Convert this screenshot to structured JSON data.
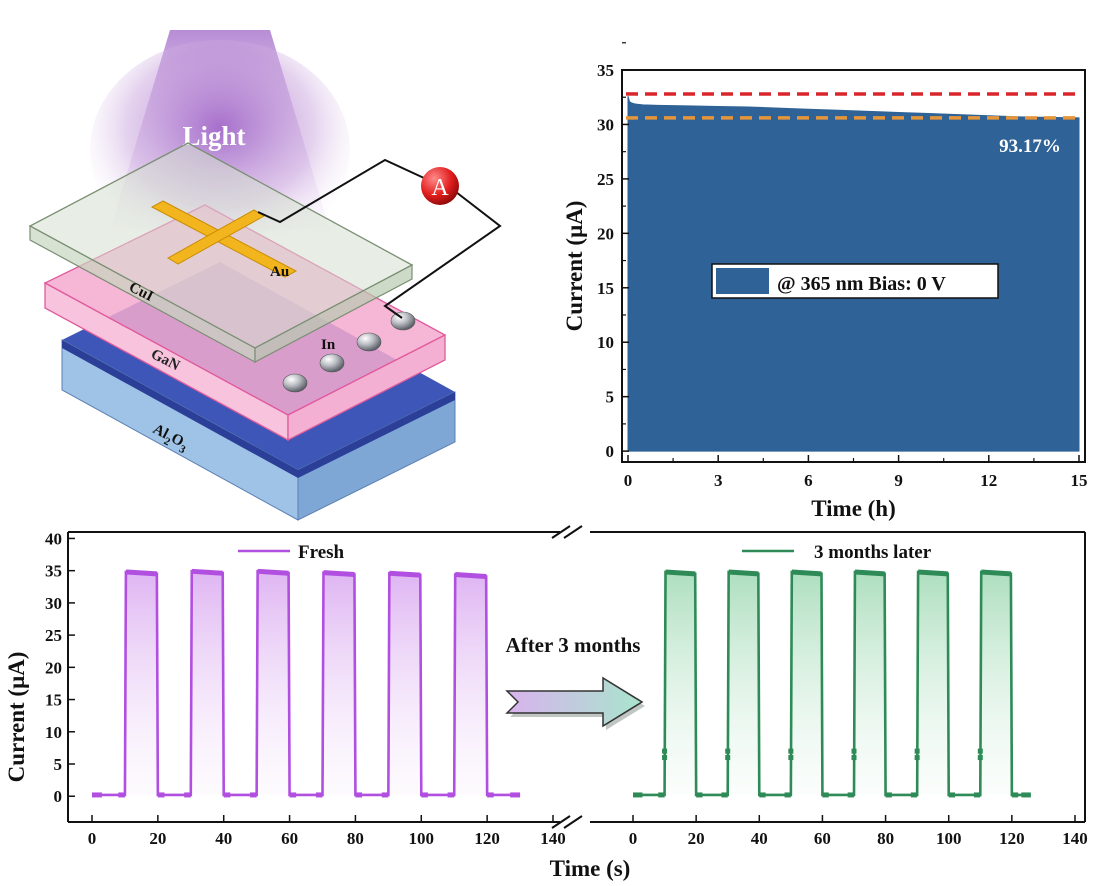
{
  "schematic": {
    "light_label": "Light",
    "ammeter_label": "A",
    "layers": [
      "CuI",
      "GaN",
      "Al2O3"
    ],
    "electrodes": [
      "Au",
      "In"
    ],
    "substrate_base": "Al",
    "substrate_sub1": "2",
    "substrate_mid": "O",
    "substrate_sub2": "3"
  },
  "chart_data": [
    {
      "type": "area",
      "xlabel": "Time (h)",
      "ylabel": "Current (μA)",
      "xlim": [
        0,
        15
      ],
      "ylim": [
        0,
        35
      ],
      "xticks": [
        0,
        3,
        6,
        9,
        12,
        15
      ],
      "yticks": [
        0,
        5,
        10,
        15,
        20,
        25,
        30,
        35
      ],
      "series": [
        {
          "color": "#2f6296",
          "x": [
            0,
            0.05,
            0.1,
            0.2,
            0.3,
            0.5,
            1,
            2,
            3,
            4,
            5,
            6,
            7,
            8,
            9,
            10,
            11,
            12,
            13,
            14,
            15
          ],
          "values": [
            32.6,
            32.1,
            32.0,
            31.9,
            31.85,
            31.8,
            31.75,
            31.7,
            31.65,
            31.6,
            31.5,
            31.4,
            31.3,
            31.2,
            31.1,
            31.0,
            30.9,
            30.8,
            30.7,
            30.65,
            30.6
          ]
        }
      ],
      "reference_lines": [
        {
          "y": 32.8,
          "color": "#d8262b",
          "style": "dashed"
        },
        {
          "y": 30.6,
          "color": "#e6963a",
          "style": "dashed"
        }
      ],
      "annotation": "93.17%",
      "legend": {
        "label": "@ 365 nm  Bias: 0 V",
        "position": "center"
      }
    },
    {
      "type": "line",
      "xlabel": "Time (s)",
      "ylabel": "Current (μA)",
      "ylim": [
        -4,
        41
      ],
      "yticks": [
        0,
        5,
        10,
        15,
        20,
        25,
        30,
        35,
        40
      ],
      "xticks_left": [
        0,
        20,
        40,
        60,
        80,
        100,
        120,
        140
      ],
      "xticks_right": [
        0,
        20,
        40,
        60,
        80,
        100,
        120,
        140
      ],
      "arrow_label": "After 3 months",
      "series": [
        {
          "name": "Fresh",
          "color": "#b14fe0",
          "fill": "#d9a8f0",
          "period": 20,
          "on_start": 10,
          "on_end": 20,
          "cycles": 6,
          "x_end": 130,
          "on_values": [
            34.8,
            34.9,
            34.9,
            34.7,
            34.6,
            34.4
          ],
          "off_value": 0.2
        },
        {
          "name": "3 months later",
          "color": "#2e8b57",
          "fill": "#9fd9b3",
          "period": 20,
          "on_start": 10,
          "on_end": 20,
          "cycles": 6,
          "x_end": 126,
          "on_values": [
            34.8,
            34.8,
            34.8,
            34.8,
            34.8,
            34.8
          ],
          "off_value": 0.2,
          "mid_points": [
            7,
            6
          ]
        }
      ]
    }
  ]
}
